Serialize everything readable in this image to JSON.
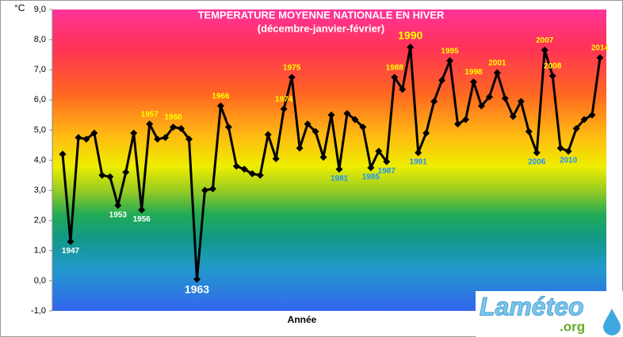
{
  "chart_data": {
    "type": "line",
    "title": "TEMPERATURE MOYENNE NATIONALE EN HIVER",
    "subtitle": "(décembre-janvier-février)",
    "y_label": "°C",
    "x_label": "Année",
    "color": "#000000",
    "x": [
      1946,
      1947,
      1948,
      1949,
      1950,
      1951,
      1952,
      1953,
      1954,
      1955,
      1956,
      1957,
      1958,
      1959,
      1960,
      1961,
      1962,
      1963,
      1964,
      1965,
      1966,
      1967,
      1968,
      1969,
      1970,
      1971,
      1972,
      1973,
      1974,
      1975,
      1976,
      1977,
      1978,
      1979,
      1980,
      1981,
      1982,
      1983,
      1984,
      1985,
      1986,
      1987,
      1988,
      1989,
      1990,
      1991,
      1992,
      1993,
      1994,
      1995,
      1996,
      1997,
      1998,
      1999,
      2000,
      2001,
      2002,
      2003,
      2004,
      2005,
      2006,
      2007,
      2008,
      2009,
      2010,
      2011,
      2012,
      2013,
      2014
    ],
    "values": [
      4.2,
      1.3,
      4.75,
      4.7,
      4.9,
      3.5,
      3.45,
      2.5,
      3.6,
      4.9,
      2.35,
      5.2,
      4.7,
      4.75,
      5.1,
      5.05,
      4.7,
      0.05,
      3.0,
      3.05,
      5.8,
      5.1,
      3.8,
      3.7,
      3.55,
      3.5,
      4.85,
      4.05,
      5.7,
      6.75,
      4.4,
      5.2,
      4.95,
      4.1,
      5.5,
      3.7,
      5.55,
      5.35,
      5.1,
      3.75,
      4.3,
      3.95,
      6.75,
      6.35,
      7.75,
      4.25,
      4.9,
      5.95,
      6.65,
      7.3,
      5.2,
      5.35,
      6.6,
      5.8,
      6.1,
      6.9,
      6.05,
      5.45,
      5.95,
      4.95,
      4.25,
      7.65,
      6.8,
      4.4,
      4.3,
      5.05,
      5.35,
      5.5,
      7.4
    ],
    "xlim": [
      1946,
      2014
    ],
    "ylim": [
      -1,
      9
    ],
    "yticks": [
      {
        "value": -1,
        "label": "-1,0"
      },
      {
        "value": 0,
        "label": "0,0"
      },
      {
        "value": 1,
        "label": "1,0"
      },
      {
        "value": 2,
        "label": "2,0"
      },
      {
        "value": 3,
        "label": "3,0"
      },
      {
        "value": 4,
        "label": "4,0"
      },
      {
        "value": 5,
        "label": "5,0"
      },
      {
        "value": 6,
        "label": "6,0"
      },
      {
        "value": 7,
        "label": "7,0"
      },
      {
        "value": 8,
        "label": "8,0"
      },
      {
        "value": 9,
        "label": "9,0"
      }
    ],
    "annotations": [
      {
        "x": 1947,
        "color": "#ffffff"
      },
      {
        "x": 1953,
        "color": "#ffffff"
      },
      {
        "x": 1956,
        "color": "#ffffff"
      },
      {
        "x": 1957,
        "color": "#ffff00"
      },
      {
        "x": 1960,
        "color": "#ffff00"
      },
      {
        "x": 1963,
        "color": "#ffffff"
      },
      {
        "x": 1966,
        "color": "#ffff00"
      },
      {
        "x": 1974,
        "color": "#ffff00"
      },
      {
        "x": 1975,
        "color": "#ffff00"
      },
      {
        "x": 1981,
        "color": "#1e90ff"
      },
      {
        "x": 1985,
        "color": "#1e90ff"
      },
      {
        "x": 1987,
        "color": "#1e90ff"
      },
      {
        "x": 1988,
        "color": "#ffff00"
      },
      {
        "x": 1990,
        "color": "#ffff00"
      },
      {
        "x": 1991,
        "color": "#1e90ff"
      },
      {
        "x": 1995,
        "color": "#ffff00"
      },
      {
        "x": 1998,
        "color": "#ffff00"
      },
      {
        "x": 2001,
        "color": "#ffff00"
      },
      {
        "x": 2006,
        "color": "#1e90ff"
      },
      {
        "x": 2007,
        "color": "#ffff00"
      },
      {
        "x": 2008,
        "color": "#ffff00"
      },
      {
        "x": 2010,
        "color": "#1e90ff"
      },
      {
        "x": 2014,
        "color": "#ffff00"
      }
    ]
  },
  "logo": {
    "name": "Laméteo",
    "suffix": ".org"
  }
}
